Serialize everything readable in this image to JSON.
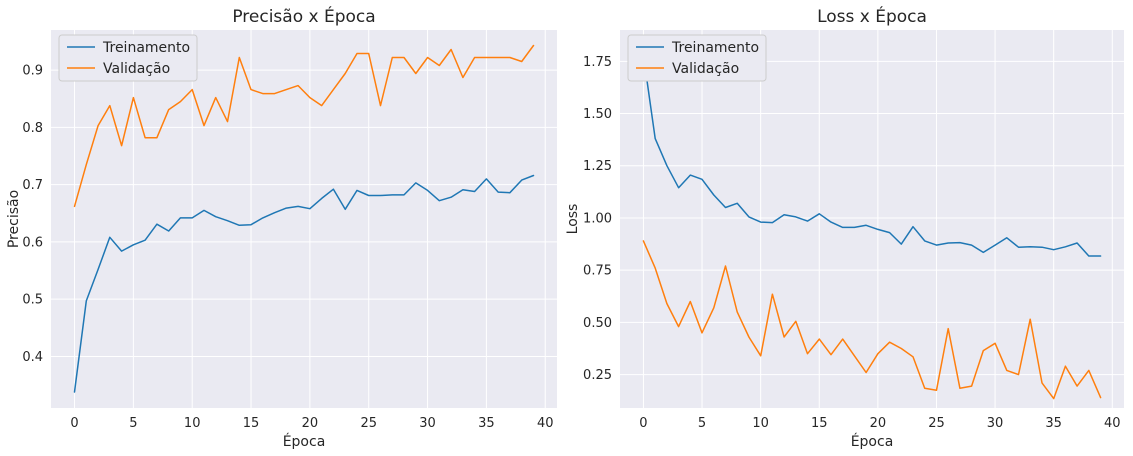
{
  "chart_data": [
    {
      "type": "line",
      "title": "Precisão x Época",
      "xlabel": "Época",
      "ylabel": "Precisão",
      "xlim": [
        -2,
        41
      ],
      "ylim": [
        0.31,
        0.97
      ],
      "xticks": [
        0,
        5,
        10,
        15,
        20,
        25,
        30,
        35,
        40
      ],
      "yticks": [
        0.4,
        0.5,
        0.6,
        0.7,
        0.8,
        0.9
      ],
      "ytick_labels": [
        "0.4",
        "0.5",
        "0.6",
        "0.7",
        "0.8",
        "0.9"
      ],
      "grid": true,
      "legend": "upper-left",
      "x": [
        0,
        1,
        2,
        3,
        4,
        5,
        6,
        7,
        8,
        9,
        10,
        11,
        12,
        13,
        14,
        15,
        16,
        17,
        18,
        19,
        20,
        21,
        22,
        23,
        24,
        25,
        26,
        27,
        28,
        29,
        30,
        31,
        32,
        33,
        34,
        35,
        36,
        37,
        38,
        39
      ],
      "series": [
        {
          "name": "Treinamento",
          "color": "#1f77b4",
          "values": [
            0.338,
            0.497,
            0.552,
            0.608,
            0.584,
            0.595,
            0.603,
            0.631,
            0.619,
            0.642,
            0.642,
            0.655,
            0.644,
            0.637,
            0.629,
            0.63,
            0.642,
            0.651,
            0.659,
            0.662,
            0.658,
            0.676,
            0.692,
            0.657,
            0.69,
            0.681,
            0.681,
            0.682,
            0.682,
            0.703,
            0.69,
            0.672,
            0.678,
            0.691,
            0.688,
            0.71,
            0.687,
            0.686,
            0.708,
            0.716
          ]
        },
        {
          "name": "Validação",
          "color": "#ff7f0e",
          "values": [
            0.662,
            0.735,
            0.803,
            0.838,
            0.768,
            0.852,
            0.782,
            0.782,
            0.831,
            0.845,
            0.866,
            0.803,
            0.852,
            0.81,
            0.922,
            0.866,
            0.859,
            0.859,
            0.866,
            0.873,
            0.852,
            0.838,
            0.866,
            0.894,
            0.929,
            0.929,
            0.838,
            0.922,
            0.922,
            0.894,
            0.922,
            0.908,
            0.936,
            0.887,
            0.922,
            0.922,
            0.922,
            0.922,
            0.915,
            0.943
          ]
        }
      ]
    },
    {
      "type": "line",
      "title": "Loss x Época",
      "xlabel": "Época",
      "ylabel": "Loss",
      "xlim": [
        -2,
        41
      ],
      "ylim": [
        0.09,
        1.9
      ],
      "xticks": [
        0,
        5,
        10,
        15,
        20,
        25,
        30,
        35,
        40
      ],
      "yticks": [
        0.25,
        0.5,
        0.75,
        1.0,
        1.25,
        1.5,
        1.75
      ],
      "ytick_labels": [
        "0.25",
        "0.50",
        "0.75",
        "1.00",
        "1.25",
        "1.50",
        "1.75"
      ],
      "grid": true,
      "legend": "upper-left",
      "x": [
        0,
        1,
        2,
        3,
        4,
        5,
        6,
        7,
        8,
        9,
        10,
        11,
        12,
        13,
        14,
        15,
        16,
        17,
        18,
        19,
        20,
        21,
        22,
        23,
        24,
        25,
        26,
        27,
        28,
        29,
        30,
        31,
        32,
        33,
        34,
        35,
        36,
        37,
        38,
        39
      ],
      "series": [
        {
          "name": "Treinamento",
          "color": "#1f77b4",
          "values": [
            1.78,
            1.38,
            1.25,
            1.145,
            1.205,
            1.185,
            1.11,
            1.05,
            1.07,
            1.005,
            0.98,
            0.978,
            1.015,
            1.005,
            0.985,
            1.02,
            0.98,
            0.955,
            0.955,
            0.965,
            0.945,
            0.93,
            0.875,
            0.958,
            0.89,
            0.87,
            0.88,
            0.882,
            0.87,
            0.835,
            0.87,
            0.905,
            0.86,
            0.862,
            0.86,
            0.848,
            0.862,
            0.88,
            0.818,
            0.818
          ]
        },
        {
          "name": "Validação",
          "color": "#ff7f0e",
          "values": [
            0.89,
            0.76,
            0.59,
            0.48,
            0.6,
            0.45,
            0.57,
            0.77,
            0.55,
            0.43,
            0.34,
            0.635,
            0.43,
            0.505,
            0.35,
            0.42,
            0.345,
            0.42,
            0.34,
            0.26,
            0.35,
            0.405,
            0.375,
            0.335,
            0.185,
            0.175,
            0.47,
            0.185,
            0.195,
            0.365,
            0.4,
            0.27,
            0.25,
            0.515,
            0.21,
            0.135,
            0.29,
            0.195,
            0.27,
            0.14
          ]
        }
      ]
    }
  ]
}
